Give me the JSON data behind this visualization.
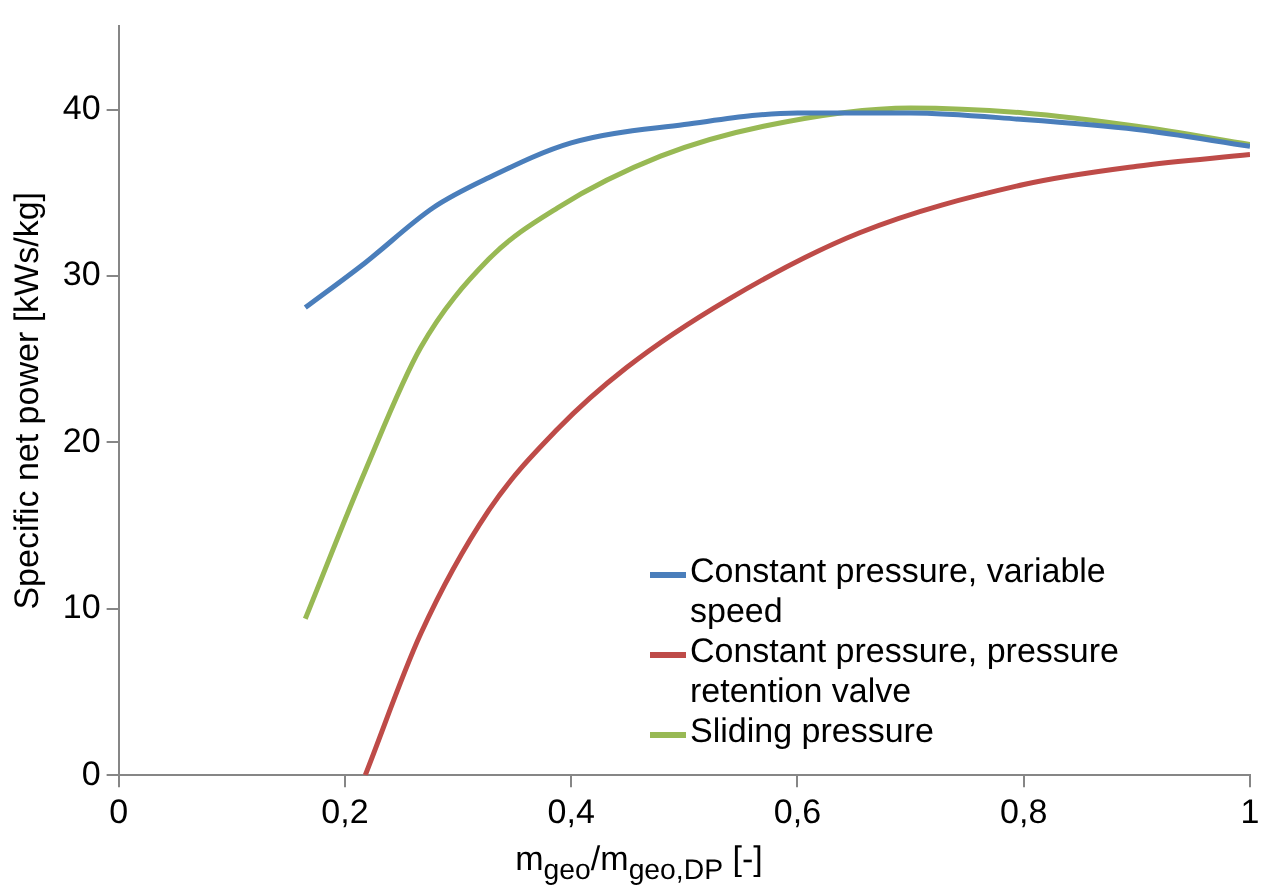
{
  "chart_data": {
    "type": "line",
    "xlabel": "m$_{geo}$/m$_{geo,DP}$ [-]",
    "ylabel": "Specific net power [kWs/kg]",
    "xlim": [
      0,
      1
    ],
    "xticks": [
      0,
      {
        "value": 0.2,
        "label": "0,2"
      },
      {
        "value": 0.4,
        "label": "0,4"
      },
      {
        "value": 0.6,
        "label": "0,6"
      },
      {
        "value": 0.8,
        "label": "0,8"
      },
      1
    ],
    "ylim": [
      0,
      45
    ],
    "yticks": [
      0,
      10,
      20,
      30,
      40
    ],
    "grid": false,
    "legend": "bottom right",
    "marker": "none",
    "line_style": "solid",
    "series": [
      {
        "name": "Constant pressure, variable speed",
        "color": "#4a7ebb",
        "x": [
          0.165,
          0.218,
          0.278,
          0.327,
          0.4,
          0.5,
          0.6,
          0.7,
          0.8,
          0.9,
          1.0
        ],
        "values": [
          28.1,
          30.8,
          34.1,
          35.9,
          38.0,
          39.1,
          39.8,
          39.8,
          39.4,
          38.8,
          37.8
        ]
      },
      {
        "name": "Constant pressure, pressure retention valve",
        "color": "#be4b48",
        "x": [
          0.218,
          0.267,
          0.327,
          0.388,
          0.449,
          0.539,
          0.655,
          0.8,
          0.9,
          1.0
        ],
        "values": [
          0,
          8.5,
          15.9,
          20.8,
          24.5,
          28.6,
          32.6,
          35.5,
          36.6,
          37.3
        ]
      },
      {
        "name": "Sliding pressure",
        "color": "#98b954",
        "x": [
          0.165,
          0.218,
          0.267,
          0.327,
          0.388,
          0.479,
          0.57,
          0.7,
          0.8,
          0.9,
          1.0
        ],
        "values": [
          9.4,
          18.3,
          25.7,
          31.0,
          34.1,
          37.2,
          39.0,
          40.1,
          39.8,
          39.0,
          37.9
        ]
      }
    ]
  }
}
